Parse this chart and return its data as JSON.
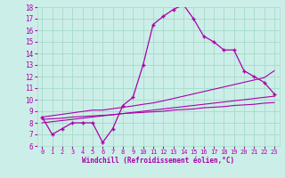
{
  "xlabel": "Windchill (Refroidissement éolien,°C)",
  "bg_color": "#cceee8",
  "line_color": "#aa00aa",
  "grid_color": "#aaddcc",
  "hours": [
    0,
    1,
    2,
    3,
    4,
    5,
    6,
    7,
    8,
    9,
    10,
    11,
    12,
    13,
    14,
    15,
    16,
    17,
    18,
    19,
    20,
    21,
    22,
    23
  ],
  "main_line": [
    8.5,
    7.0,
    7.5,
    8.0,
    8.0,
    8.0,
    6.3,
    7.5,
    9.5,
    10.2,
    13.0,
    16.5,
    17.2,
    17.8,
    18.2,
    17.0,
    15.5,
    15.0,
    14.3,
    14.3,
    12.5,
    12.0,
    11.5,
    10.5
  ],
  "reg_line1": [
    8.3,
    8.35,
    8.4,
    8.5,
    8.55,
    8.6,
    8.65,
    8.7,
    8.8,
    8.85,
    8.9,
    8.95,
    9.0,
    9.1,
    9.15,
    9.2,
    9.3,
    9.35,
    9.4,
    9.5,
    9.55,
    9.6,
    9.7,
    9.75
  ],
  "reg_line2": [
    8.0,
    8.1,
    8.2,
    8.3,
    8.4,
    8.5,
    8.6,
    8.7,
    8.8,
    8.9,
    9.0,
    9.1,
    9.2,
    9.3,
    9.4,
    9.5,
    9.6,
    9.7,
    9.8,
    9.9,
    10.0,
    10.1,
    10.2,
    10.3
  ],
  "reg_line3": [
    8.5,
    8.62,
    8.74,
    8.86,
    8.98,
    9.1,
    9.1,
    9.22,
    9.34,
    9.46,
    9.6,
    9.72,
    9.9,
    10.1,
    10.3,
    10.5,
    10.7,
    10.9,
    11.1,
    11.3,
    11.5,
    11.7,
    11.9,
    12.5
  ],
  "ylim": [
    6,
    18
  ],
  "xlim": [
    -0.5,
    23.5
  ],
  "yticks": [
    6,
    7,
    8,
    9,
    10,
    11,
    12,
    13,
    14,
    15,
    16,
    17,
    18
  ],
  "xticks": [
    0,
    1,
    2,
    3,
    4,
    5,
    6,
    7,
    8,
    9,
    10,
    11,
    12,
    13,
    14,
    15,
    16,
    17,
    18,
    19,
    20,
    21,
    22,
    23
  ]
}
